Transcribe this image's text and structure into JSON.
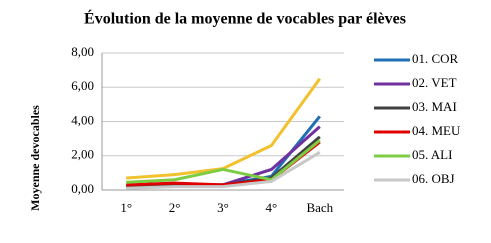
{
  "chart_data": {
    "type": "line",
    "title": "Évolution de la moyenne de vocables par élèves",
    "y_label": "Moyenne devocables",
    "categories": [
      "1°",
      "2°",
      "3°",
      "4°",
      "Bach"
    ],
    "series": [
      {
        "color": "#f2c12e",
        "values": [
          0.7,
          0.9,
          1.25,
          2.6,
          6.5
        ]
      },
      {
        "name": "01. COR",
        "color": "#1f6fb5",
        "values": [
          0.2,
          0.3,
          0.3,
          0.8,
          4.3
        ]
      },
      {
        "name": "02. VET",
        "color": "#7030a0",
        "values": [
          0.2,
          0.3,
          0.3,
          1.2,
          3.7
        ]
      },
      {
        "name": "03. MAI",
        "color": "#404040",
        "values": [
          0.2,
          0.3,
          0.3,
          0.7,
          3.1
        ]
      },
      {
        "name": "04. MEU",
        "color": "#e00000",
        "values": [
          0.3,
          0.4,
          0.3,
          0.6,
          2.8
        ]
      },
      {
        "name": "05. ALI",
        "color": "#7ccc44",
        "values": [
          0.45,
          0.6,
          1.2,
          0.6,
          2.9
        ]
      },
      {
        "name": "06. OBJ",
        "color": "#c8c8c8",
        "values": [
          0.1,
          0.2,
          0.2,
          0.5,
          2.2
        ]
      }
    ],
    "ylim": [
      0,
      8
    ],
    "yticks": [
      {
        "value": 0,
        "label": "0,00"
      },
      {
        "value": 2,
        "label": "2,00"
      },
      {
        "value": 4,
        "label": "4,00"
      },
      {
        "value": 6,
        "label": "6,00"
      },
      {
        "value": 8,
        "label": "8,00"
      }
    ],
    "grid": true
  }
}
